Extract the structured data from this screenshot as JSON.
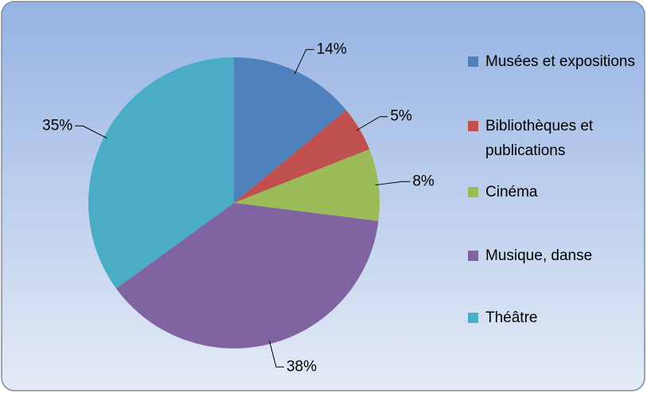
{
  "chart_data": {
    "type": "pie",
    "categories": [
      "Musées et expositions",
      "Bibliothèques et publications",
      "Cinéma",
      "Musique, danse",
      "Théâtre"
    ],
    "values": [
      14,
      5,
      8,
      38,
      35
    ],
    "value_labels": [
      "14%",
      "5%",
      "8%",
      "38%",
      "35%"
    ],
    "colors": [
      "#4f81bd",
      "#c0504d",
      "#9bbb59",
      "#8064a2",
      "#4bacc6"
    ],
    "legend": "right"
  }
}
